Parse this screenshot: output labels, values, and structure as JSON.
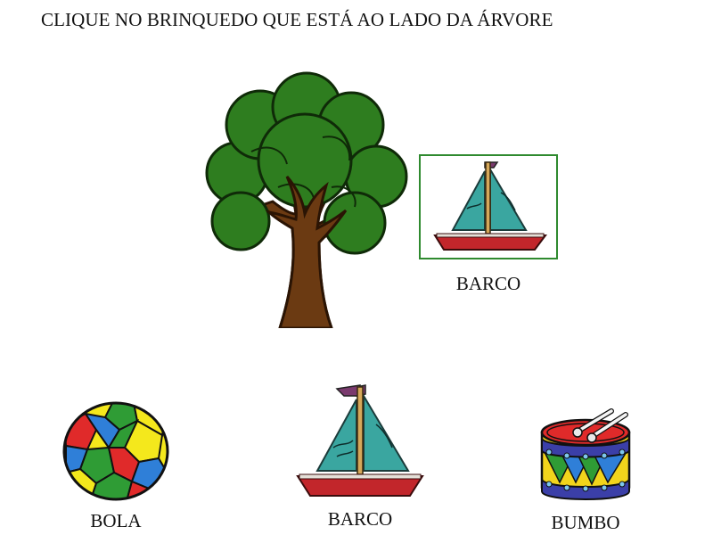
{
  "instruction": "CLIQUE NO BRINQUEDO QUE ESTÁ AO LADO DA ÁRVORE",
  "reference": {
    "tree_icon": "tree-icon",
    "selected_item": {
      "label": "BARCO",
      "icon": "boat-icon"
    }
  },
  "options": [
    {
      "label": "BOLA",
      "icon": "ball-icon"
    },
    {
      "label": "BARCO",
      "icon": "boat-icon"
    },
    {
      "label": "BUMBO",
      "icon": "drum-icon"
    }
  ],
  "colors": {
    "selection_border": "#2f8a2f",
    "tree_leaves": "#2e7d1f",
    "tree_trunk": "#6b3a12",
    "sail": "#3aa6a0",
    "hull": "#c2262b"
  }
}
